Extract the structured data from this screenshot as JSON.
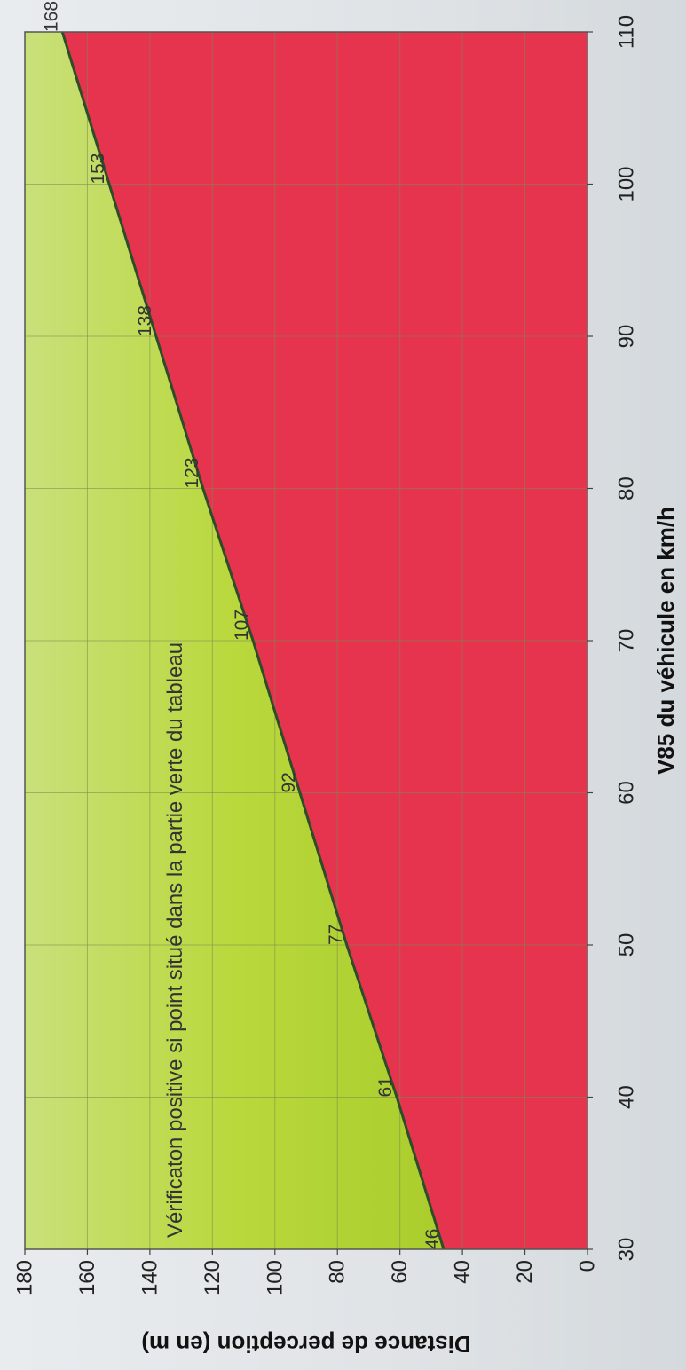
{
  "chart_data": {
    "type": "area",
    "xlabel": "V85 du véhicule en km/h",
    "ylabel": "Distance de perception (en m)",
    "xlim": [
      30,
      110
    ],
    "ylim": [
      0,
      180
    ],
    "x_ticks": [
      "30",
      "40",
      "50",
      "60",
      "70",
      "80",
      "90",
      "100",
      "110"
    ],
    "y_ticks": [
      "0",
      "20",
      "40",
      "60",
      "80",
      "100",
      "120",
      "140",
      "160",
      "180"
    ],
    "grid": true,
    "annotation": "Vérificaton positive si point situé dans la partie verte du tableau",
    "x": [
      30,
      40,
      50,
      60,
      70,
      80,
      90,
      100,
      110
    ],
    "series": [
      {
        "values": [
          46,
          61,
          77,
          92,
          107,
          123,
          138,
          153,
          168
        ]
      }
    ],
    "data_labels": [
      "46",
      "61",
      "77",
      "92",
      "107",
      "123",
      "138",
      "153",
      "168"
    ],
    "colors": {
      "above_line": "#b4d432",
      "below_line": "#e6344e",
      "line": "#2d4d28",
      "grid": "#7a8a50"
    }
  }
}
